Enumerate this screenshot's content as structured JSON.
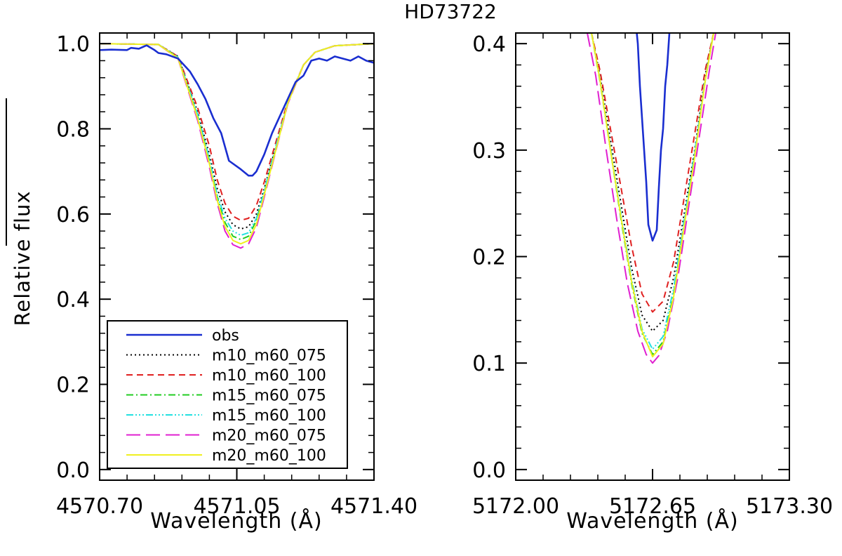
{
  "title": "HD73722",
  "ylabel": "Relative flux",
  "legend": {
    "entries": [
      {
        "label": "obs",
        "color": "#1a2ed0",
        "dash": "solid"
      },
      {
        "label": "m10_m60_075",
        "color": "#000000",
        "dash": "dotted"
      },
      {
        "label": "m10_m60_100",
        "color": "#e02020",
        "dash": "dashed"
      },
      {
        "label": "m15_m60_075",
        "color": "#22cc22",
        "dash": "dashdot"
      },
      {
        "label": "m15_m60_100",
        "color": "#22e0e0",
        "dash": "dashdotdotdot"
      },
      {
        "label": "m20_m60_075",
        "color": "#e020d0",
        "dash": "longdash"
      },
      {
        "label": "m20_m60_100",
        "color": "#f0f020",
        "dash": "solid"
      }
    ]
  },
  "chart_data": [
    {
      "type": "line",
      "xlabel": "Wavelength (Å)",
      "ylabel": "Relative flux",
      "xlim": [
        4570.7,
        4571.4
      ],
      "ylim": [
        -0.025,
        1.025
      ],
      "xticks": [
        4570.7,
        4571.05,
        4571.4
      ],
      "xtick_labels": [
        "4570.70",
        "4571.05",
        "4571.40"
      ],
      "yticks": [
        0.0,
        0.2,
        0.4,
        0.6,
        0.8,
        1.0
      ],
      "ytick_labels": [
        "0.0",
        "0.2",
        "0.4",
        "0.6",
        "0.8",
        "1.0"
      ],
      "legend_position": "bottom-left",
      "series": [
        {
          "name": "obs",
          "color": "#1a2ed0",
          "dash": "solid",
          "x": [
            4570.7,
            4570.73,
            4570.77,
            4570.78,
            4570.8,
            4570.82,
            4570.84,
            4570.85,
            4570.87,
            4570.9,
            4570.92,
            4570.93,
            4570.95,
            4570.97,
            4570.99,
            4571.01,
            4571.03,
            4571.06,
            4571.08,
            4571.09,
            4571.1,
            4571.12,
            4571.14,
            4571.16,
            4571.18,
            4571.2,
            4571.22,
            4571.24,
            4571.26,
            4571.28,
            4571.3,
            4571.32,
            4571.34,
            4571.36,
            4571.38,
            4571.4
          ],
          "y": [
            0.985,
            0.986,
            0.985,
            0.99,
            0.988,
            0.996,
            0.985,
            0.978,
            0.975,
            0.965,
            0.945,
            0.935,
            0.905,
            0.87,
            0.825,
            0.79,
            0.725,
            0.705,
            0.69,
            0.69,
            0.7,
            0.74,
            0.79,
            0.83,
            0.87,
            0.91,
            0.925,
            0.96,
            0.965,
            0.96,
            0.97,
            0.965,
            0.96,
            0.97,
            0.96,
            0.955
          ]
        },
        {
          "name": "m10_m60_075",
          "color": "#000000",
          "dash": "dotted",
          "x": [
            4570.7,
            4570.85,
            4570.9,
            4570.95,
            4570.98,
            4571.0,
            4571.02,
            4571.04,
            4571.06,
            4571.08,
            4571.1,
            4571.12,
            4571.15,
            4571.18,
            4571.22,
            4571.25,
            4571.3,
            4571.4
          ],
          "y": [
            1.0,
            0.998,
            0.97,
            0.84,
            0.74,
            0.66,
            0.605,
            0.575,
            0.565,
            0.57,
            0.6,
            0.66,
            0.76,
            0.86,
            0.95,
            0.98,
            0.995,
            1.0
          ]
        },
        {
          "name": "m10_m60_100",
          "color": "#e02020",
          "dash": "dashed",
          "x": [
            4570.7,
            4570.85,
            4570.9,
            4570.95,
            4570.98,
            4571.0,
            4571.02,
            4571.04,
            4571.06,
            4571.08,
            4571.1,
            4571.12,
            4571.15,
            4571.18,
            4571.22,
            4571.25,
            4571.3,
            4571.4
          ],
          "y": [
            1.0,
            0.998,
            0.97,
            0.85,
            0.76,
            0.68,
            0.625,
            0.595,
            0.585,
            0.59,
            0.62,
            0.675,
            0.77,
            0.865,
            0.95,
            0.98,
            0.995,
            1.0
          ]
        },
        {
          "name": "m15_m60_075",
          "color": "#22cc22",
          "dash": "dashdot",
          "x": [
            4570.7,
            4570.85,
            4570.9,
            4570.95,
            4570.98,
            4571.0,
            4571.02,
            4571.04,
            4571.06,
            4571.08,
            4571.1,
            4571.12,
            4571.15,
            4571.18,
            4571.22,
            4571.25,
            4571.3,
            4571.4
          ],
          "y": [
            1.0,
            0.998,
            0.968,
            0.83,
            0.725,
            0.64,
            0.58,
            0.548,
            0.54,
            0.548,
            0.585,
            0.65,
            0.755,
            0.86,
            0.95,
            0.98,
            0.995,
            1.0
          ]
        },
        {
          "name": "m15_m60_100",
          "color": "#22e0e0",
          "dash": "dashdotdotdot",
          "x": [
            4570.7,
            4570.85,
            4570.9,
            4570.95,
            4570.98,
            4571.0,
            4571.02,
            4571.04,
            4571.06,
            4571.08,
            4571.1,
            4571.12,
            4571.15,
            4571.18,
            4571.22,
            4571.25,
            4571.3,
            4571.4
          ],
          "y": [
            1.0,
            0.998,
            0.968,
            0.835,
            0.73,
            0.645,
            0.59,
            0.56,
            0.55,
            0.556,
            0.59,
            0.655,
            0.76,
            0.862,
            0.95,
            0.98,
            0.995,
            1.0
          ]
        },
        {
          "name": "m20_m60_075",
          "color": "#e020d0",
          "dash": "longdash",
          "x": [
            4570.7,
            4570.85,
            4570.9,
            4570.95,
            4570.98,
            4571.0,
            4571.02,
            4571.04,
            4571.06,
            4571.08,
            4571.1,
            4571.12,
            4571.15,
            4571.18,
            4571.22,
            4571.25,
            4571.3,
            4571.4
          ],
          "y": [
            1.0,
            0.998,
            0.965,
            0.82,
            0.71,
            0.625,
            0.56,
            0.528,
            0.52,
            0.53,
            0.568,
            0.64,
            0.75,
            0.858,
            0.95,
            0.98,
            0.995,
            1.0
          ]
        },
        {
          "name": "m20_m60_100",
          "color": "#f0f020",
          "dash": "solid",
          "x": [
            4570.7,
            4570.85,
            4570.9,
            4570.95,
            4570.98,
            4571.0,
            4571.02,
            4571.04,
            4571.06,
            4571.08,
            4571.1,
            4571.12,
            4571.15,
            4571.18,
            4571.22,
            4571.25,
            4571.3,
            4571.4
          ],
          "y": [
            1.0,
            0.998,
            0.966,
            0.825,
            0.718,
            0.632,
            0.57,
            0.538,
            0.53,
            0.538,
            0.576,
            0.645,
            0.752,
            0.86,
            0.95,
            0.98,
            0.995,
            1.0
          ]
        }
      ]
    },
    {
      "type": "line",
      "xlabel": "Wavelength (Å)",
      "ylabel": "",
      "xlim": [
        5172.0,
        5173.3
      ],
      "ylim": [
        -0.01,
        0.41
      ],
      "xticks": [
        5172.0,
        5172.65,
        5173.3
      ],
      "xtick_labels": [
        "5172.00",
        "5172.65",
        "5173.30"
      ],
      "yticks": [
        0.0,
        0.1,
        0.2,
        0.3,
        0.4
      ],
      "ytick_labels": [
        "0.0",
        "0.1",
        "0.2",
        "0.3",
        "0.4"
      ],
      "series": [
        {
          "name": "obs",
          "color": "#1a2ed0",
          "dash": "solid",
          "x": [
            5172.57,
            5172.58,
            5172.59,
            5172.6,
            5172.61,
            5172.62,
            5172.63,
            5172.65,
            5172.67,
            5172.68,
            5172.69,
            5172.7,
            5172.71,
            5172.72,
            5172.73,
            5172.74
          ],
          "y": [
            0.42,
            0.4,
            0.36,
            0.33,
            0.3,
            0.27,
            0.23,
            0.215,
            0.225,
            0.265,
            0.3,
            0.32,
            0.36,
            0.38,
            0.41,
            0.42
          ]
        },
        {
          "name": "m10_m60_075",
          "color": "#000000",
          "dash": "dotted",
          "x": [
            5172.36,
            5172.4,
            5172.45,
            5172.5,
            5172.55,
            5172.6,
            5172.65,
            5172.7,
            5172.75,
            5172.8,
            5172.85,
            5172.9,
            5172.94
          ],
          "y": [
            0.41,
            0.37,
            0.31,
            0.25,
            0.19,
            0.145,
            0.13,
            0.14,
            0.18,
            0.24,
            0.3,
            0.37,
            0.41
          ]
        },
        {
          "name": "m10_m60_100",
          "color": "#e02020",
          "dash": "dashed",
          "x": [
            5172.36,
            5172.4,
            5172.45,
            5172.5,
            5172.55,
            5172.6,
            5172.65,
            5172.7,
            5172.75,
            5172.8,
            5172.85,
            5172.9,
            5172.94
          ],
          "y": [
            0.41,
            0.375,
            0.32,
            0.265,
            0.21,
            0.165,
            0.148,
            0.158,
            0.195,
            0.255,
            0.315,
            0.375,
            0.41
          ]
        },
        {
          "name": "m15_m60_075",
          "color": "#22cc22",
          "dash": "dashdot",
          "x": [
            5172.36,
            5172.4,
            5172.45,
            5172.5,
            5172.55,
            5172.6,
            5172.65,
            5172.7,
            5172.75,
            5172.8,
            5172.85,
            5172.9,
            5172.94
          ],
          "y": [
            0.41,
            0.365,
            0.3,
            0.235,
            0.175,
            0.128,
            0.108,
            0.12,
            0.165,
            0.23,
            0.295,
            0.365,
            0.41
          ]
        },
        {
          "name": "m15_m60_100",
          "color": "#22e0e0",
          "dash": "dashdotdotdot",
          "x": [
            5172.36,
            5172.4,
            5172.45,
            5172.5,
            5172.55,
            5172.6,
            5172.65,
            5172.7,
            5172.75,
            5172.8,
            5172.85,
            5172.9,
            5172.94
          ],
          "y": [
            0.41,
            0.367,
            0.302,
            0.24,
            0.18,
            0.132,
            0.113,
            0.125,
            0.17,
            0.234,
            0.298,
            0.367,
            0.41
          ]
        },
        {
          "name": "m20_m60_075",
          "color": "#e020d0",
          "dash": "longdash",
          "x": [
            5172.34,
            5172.38,
            5172.43,
            5172.48,
            5172.53,
            5172.58,
            5172.62,
            5172.65,
            5172.68,
            5172.72,
            5172.77,
            5172.82,
            5172.87,
            5172.92,
            5172.95
          ],
          "y": [
            0.41,
            0.37,
            0.3,
            0.235,
            0.175,
            0.13,
            0.108,
            0.1,
            0.107,
            0.13,
            0.18,
            0.245,
            0.31,
            0.375,
            0.41
          ]
        },
        {
          "name": "m20_m60_100",
          "color": "#f0f020",
          "dash": "solid",
          "x": [
            5172.36,
            5172.4,
            5172.45,
            5172.5,
            5172.55,
            5172.6,
            5172.65,
            5172.7,
            5172.75,
            5172.8,
            5172.85,
            5172.9,
            5172.94
          ],
          "y": [
            0.41,
            0.366,
            0.3,
            0.237,
            0.177,
            0.13,
            0.106,
            0.118,
            0.162,
            0.228,
            0.293,
            0.365,
            0.41
          ]
        }
      ]
    }
  ]
}
